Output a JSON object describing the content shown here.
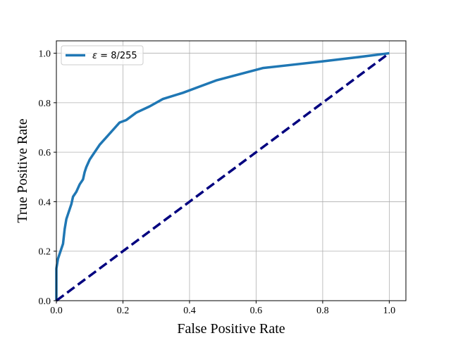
{
  "chart_data": {
    "type": "line",
    "title": "",
    "xlabel": "False Positive Rate",
    "ylabel": "True Positive Rate",
    "xlim": [
      0.0,
      1.05
    ],
    "ylim": [
      0.0,
      1.05
    ],
    "xticks": [
      "0.0",
      "0.2",
      "0.4",
      "0.6",
      "0.8",
      "1.0"
    ],
    "yticks": [
      "0.0",
      "0.2",
      "0.4",
      "0.6",
      "0.8",
      "1.0"
    ],
    "grid": true,
    "legend_position": "upper-left",
    "series": [
      {
        "name": "ε = 8/255",
        "legend_prefix": "ε",
        "legend_suffix": " = 8/255",
        "color": "#1f77b4",
        "style": "solid",
        "x": [
          0.0,
          0.0,
          0.005,
          0.01,
          0.015,
          0.02,
          0.025,
          0.03,
          0.035,
          0.04,
          0.045,
          0.05,
          0.06,
          0.07,
          0.075,
          0.08,
          0.085,
          0.09,
          0.1,
          0.11,
          0.12,
          0.13,
          0.15,
          0.17,
          0.19,
          0.21,
          0.24,
          0.28,
          0.32,
          0.38,
          0.43,
          0.48,
          0.55,
          0.62,
          0.7,
          0.8,
          0.9,
          1.0
        ],
        "y": [
          0.0,
          0.13,
          0.17,
          0.19,
          0.21,
          0.23,
          0.29,
          0.33,
          0.35,
          0.37,
          0.39,
          0.42,
          0.44,
          0.47,
          0.48,
          0.49,
          0.52,
          0.54,
          0.57,
          0.59,
          0.61,
          0.63,
          0.66,
          0.69,
          0.72,
          0.73,
          0.76,
          0.785,
          0.815,
          0.84,
          0.865,
          0.89,
          0.915,
          0.94,
          0.952,
          0.967,
          0.983,
          1.0
        ]
      },
      {
        "name": "",
        "color": "#00007f",
        "style": "dashed",
        "x": [
          0.0,
          1.0
        ],
        "y": [
          0.0,
          1.0
        ]
      }
    ]
  }
}
